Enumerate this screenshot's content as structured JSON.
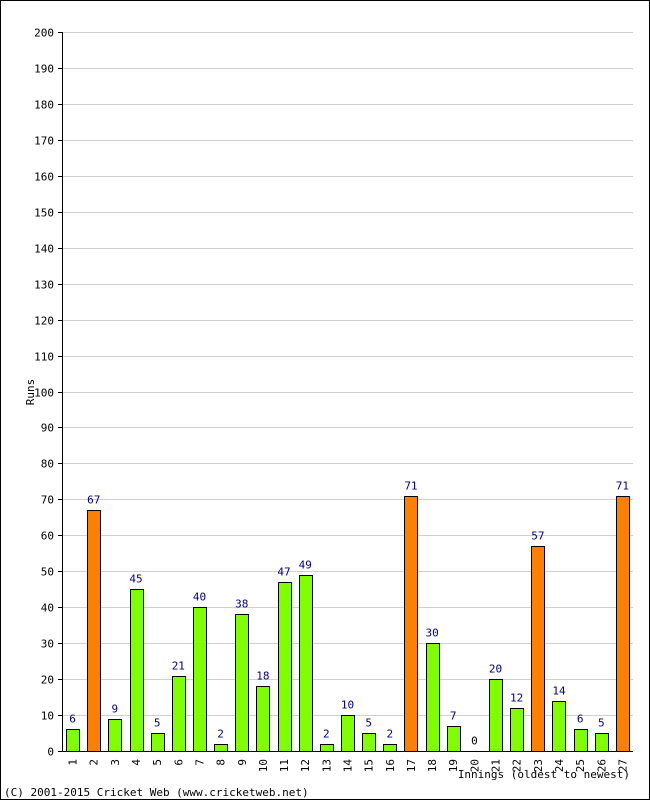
{
  "chart_data": {
    "type": "bar",
    "categories": [
      "1",
      "2",
      "3",
      "4",
      "5",
      "6",
      "7",
      "8",
      "9",
      "10",
      "11",
      "12",
      "13",
      "14",
      "15",
      "16",
      "17",
      "18",
      "19",
      "20",
      "21",
      "22",
      "23",
      "24",
      "25",
      "26",
      "27"
    ],
    "values": [
      6,
      67,
      9,
      45,
      5,
      21,
      40,
      2,
      38,
      18,
      47,
      49,
      2,
      10,
      5,
      2,
      71,
      30,
      7,
      0,
      20,
      12,
      57,
      14,
      6,
      5,
      71
    ],
    "not_out": [
      true,
      false,
      true,
      true,
      true,
      true,
      true,
      true,
      true,
      true,
      true,
      true,
      true,
      true,
      true,
      true,
      false,
      true,
      true,
      false,
      true,
      true,
      false,
      true,
      true,
      true,
      false
    ],
    "title": "",
    "xlabel": "Innings (oldest to newest)",
    "ylabel": "Runs",
    "ylim": [
      0,
      200
    ],
    "ytick_step": 10,
    "grid": true,
    "colors": {
      "bar": "#80ff00",
      "highlight_bar": "#ff8000",
      "bar_border": "#000000",
      "grid": "#d0d0d0",
      "label_default": "#000080",
      "label_zero": "#000000"
    }
  },
  "footer": {
    "copyright": "(C) 2001-2015 Cricket Web (www.cricketweb.net)"
  }
}
